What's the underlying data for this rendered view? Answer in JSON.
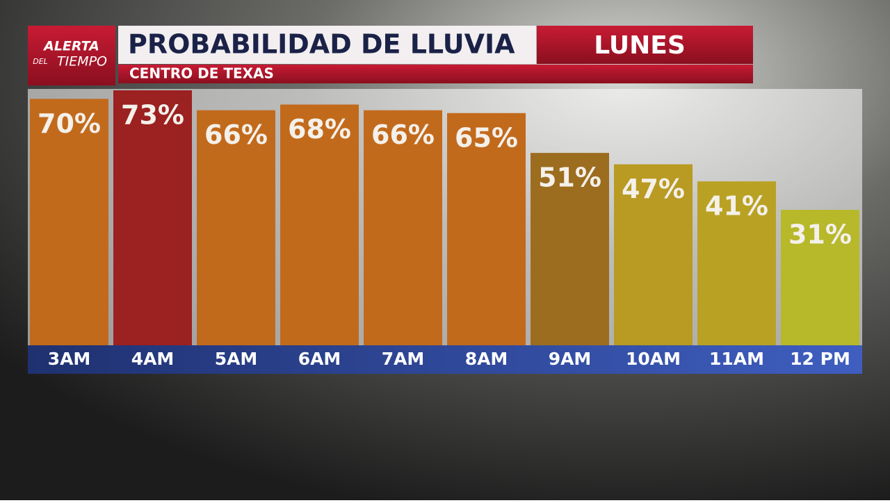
{
  "brand": {
    "line1": "ALERTA",
    "line2a": "DEL",
    "line2b": "TIEMPO"
  },
  "chart_data": {
    "type": "bar",
    "title": "PROBABILIDAD DE LLUVIA",
    "day": "LUNES",
    "subtitle": "CENTRO DE TEXAS",
    "categories": [
      "3AM",
      "4AM",
      "5AM",
      "6AM",
      "7AM",
      "8AM",
      "9AM",
      "10AM",
      "11AM",
      "12 PM"
    ],
    "values": [
      70,
      73,
      66,
      68,
      66,
      65,
      51,
      47,
      41,
      31
    ],
    "value_labels": [
      "70%",
      "73%",
      "66%",
      "68%",
      "66%",
      "65%",
      "51%",
      "47%",
      "41%",
      "31%"
    ],
    "colors": [
      "#c26a1c",
      "#9c2121",
      "#c26a1c",
      "#c26a1c",
      "#c26a1c",
      "#c26a1c",
      "#9c6d1f",
      "#b99a22",
      "#b9a223",
      "#b7b82a"
    ],
    "ylim": [
      -16.6,
      73
    ]
  }
}
